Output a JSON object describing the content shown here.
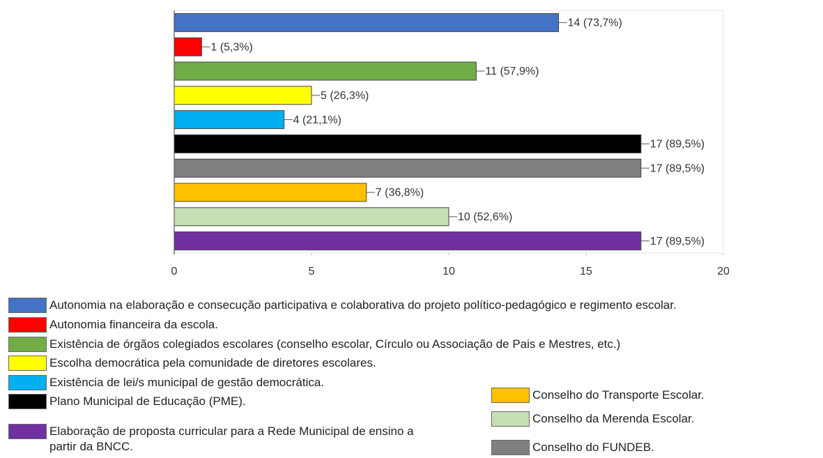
{
  "chart_data": {
    "type": "bar",
    "orientation": "horizontal",
    "categories": [
      "Autonomia na elaboração e consecução participativa e colaborativa do projeto político-pedagógico e regimento escolar.",
      "Autonomia financeira da escola.",
      "Existência de órgãos colegiados escolares (conselho escolar, Círculo ou Associação de Pais e Mestres, etc.)",
      "Escolha democrática pela comunidade de diretores escolares.",
      "Existência de lei/s municipal de gestão democrática.",
      "Plano Municipal de Educação (PME).",
      "Conselho do FUNDEB.",
      "Conselho do Transporte Escolar.",
      "Conselho da Merenda Escolar.",
      "Elaboração de proposta curricular para a Rede Municipal de ensino a partir da BNCC."
    ],
    "values": [
      14,
      1,
      11,
      5,
      4,
      17,
      17,
      7,
      10,
      17
    ],
    "value_labels": [
      "14 (73,7%)",
      "1 (5,3%)",
      "11 (57,9%)",
      "5 (26,3%)",
      "4 (21,1%)",
      "17 (89,5%)",
      "17 (89,5%)",
      "7 (36,8%)",
      "10 (52,6%)",
      "17 (89,5%)"
    ],
    "colors": [
      "#4472c4",
      "#ff0000",
      "#70ad47",
      "#ffff00",
      "#00b0f0",
      "#000000",
      "#808080",
      "#ffc000",
      "#c5e0b4",
      "#7030a0"
    ],
    "xlim": [
      0,
      20
    ],
    "xticks": [
      0,
      5,
      10,
      15,
      20
    ]
  }
}
